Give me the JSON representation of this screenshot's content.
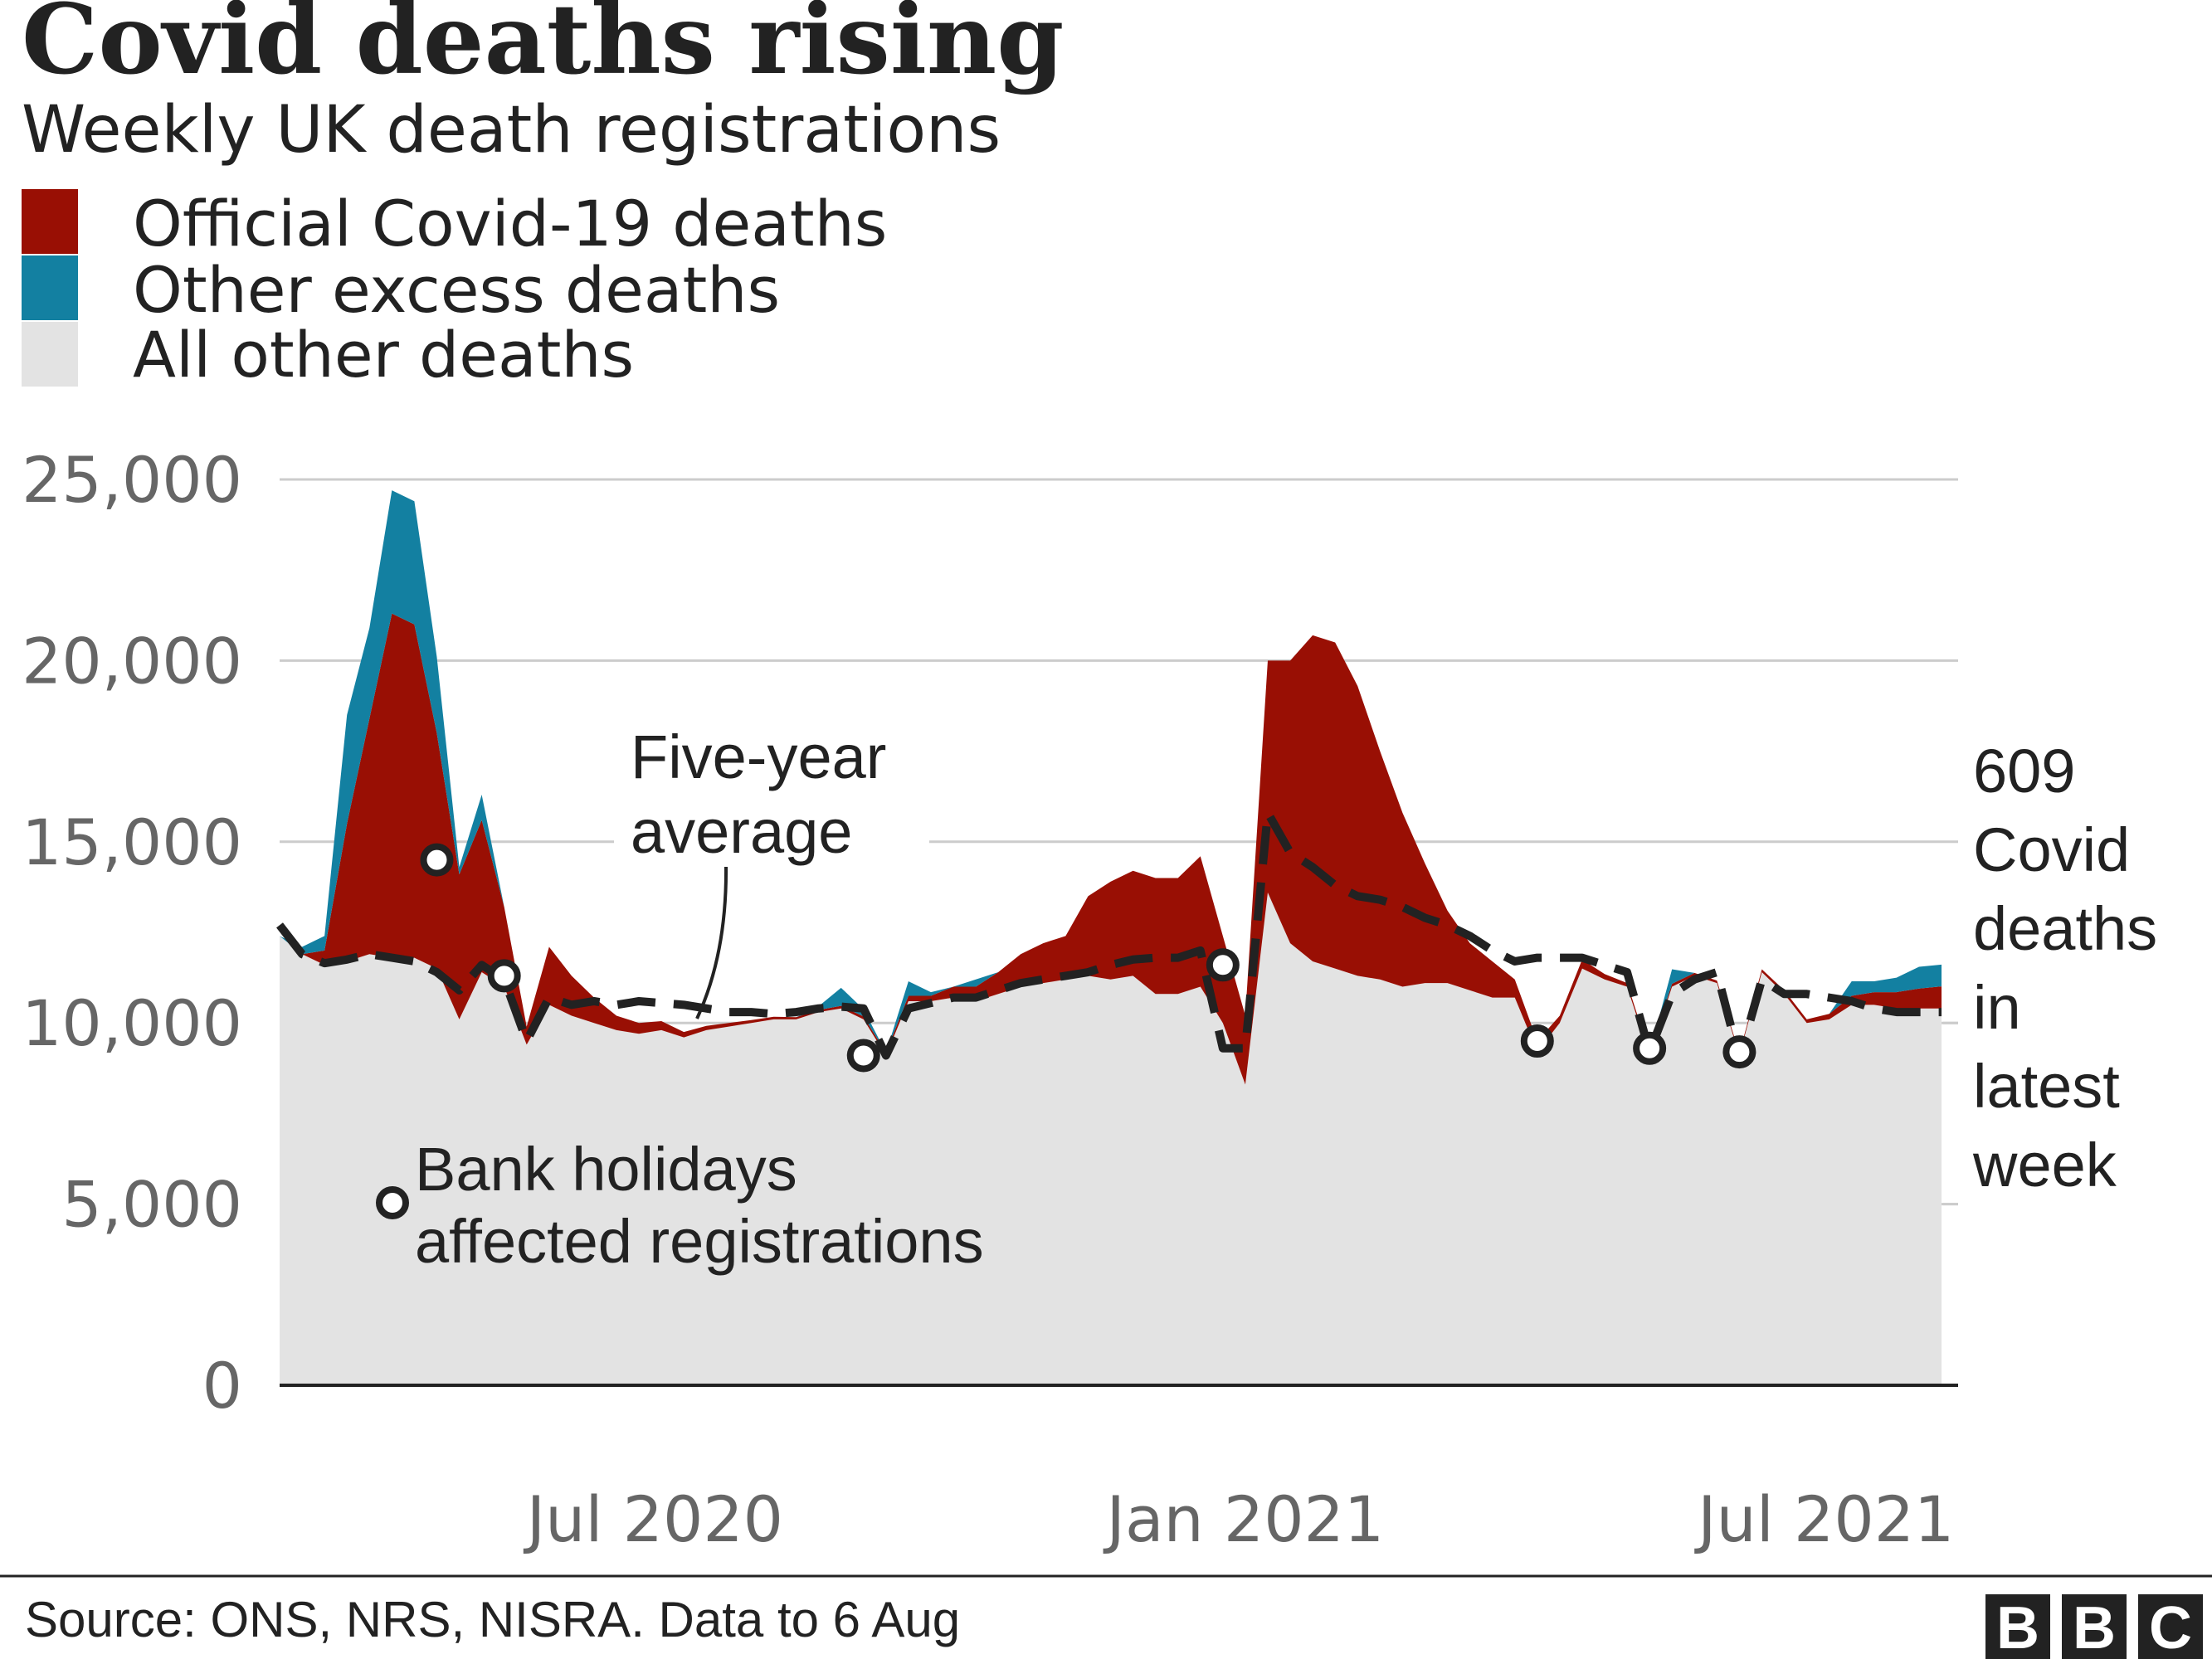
{
  "colors": {
    "covid": "#990f04",
    "excess": "#1380a1",
    "other": "#e3e3e3",
    "average": "#222222",
    "grid": "#cccccc",
    "tick": "#666666"
  },
  "chart_data": {
    "type": "area",
    "title": "Covid deaths rising",
    "subtitle": "Weekly UK death registrations",
    "ylim": [
      0,
      25000
    ],
    "yticks": [
      0,
      5000,
      10000,
      15000,
      20000,
      25000
    ],
    "ytick_labels": [
      "0",
      "5,000",
      "10,000",
      "15,000",
      "20,000",
      "25,000"
    ],
    "xlim": [
      "2020-03-06",
      "2021-08-06"
    ],
    "xticks": [
      {
        "date": "2020-07-01",
        "label": "Jul 2020"
      },
      {
        "date": "2021-01-01",
        "label": "Jan 2021"
      },
      {
        "date": "2021-07-01",
        "label": "Jul 2021"
      }
    ],
    "grid": true,
    "legend": {
      "position": "top-left",
      "entries": [
        {
          "key": "covid",
          "label": "Official Covid-19 deaths"
        },
        {
          "key": "excess",
          "label": "Other excess deaths"
        },
        {
          "key": "other",
          "label": "All other deaths"
        }
      ]
    },
    "weeks": [
      {
        "date": "2020-03-06",
        "other": 12400,
        "covid": 0,
        "excess": 0,
        "average": 12700
      },
      {
        "date": "2020-03-13",
        "other": 11900,
        "covid": 0,
        "excess": 200,
        "average": 11900
      },
      {
        "date": "2020-03-20",
        "other": 11600,
        "covid": 400,
        "excess": 400,
        "average": 11650
      },
      {
        "date": "2020-03-27",
        "other": 11700,
        "covid": 3800,
        "excess": 3000,
        "average": 11750
      },
      {
        "date": "2020-04-03",
        "other": 11900,
        "covid": 6500,
        "excess": 2500,
        "average": 11900
      },
      {
        "date": "2020-04-10",
        "other": 11800,
        "covid": 9500,
        "excess": 3400,
        "average": 11800
      },
      {
        "date": "2020-04-17",
        "other": 11800,
        "covid": 9200,
        "excess": 3400,
        "average": 11700
      },
      {
        "date": "2020-04-24",
        "other": 11500,
        "covid": 6500,
        "excess": 2100,
        "average": 11400
      },
      {
        "date": "2020-05-01",
        "other": 10100,
        "covid": 4000,
        "excess": 200,
        "average": 10900
      },
      {
        "date": "2020-05-08",
        "other": 11400,
        "covid": 4200,
        "excess": 700,
        "average": 11600
      },
      {
        "date": "2020-05-15",
        "other": 11000,
        "covid": 2200,
        "excess": 0,
        "average": 11200
      },
      {
        "date": "2020-05-22",
        "other": 9400,
        "covid": 500,
        "excess": 0,
        "average": 9500
      },
      {
        "date": "2020-05-29",
        "other": 10500,
        "covid": 1600,
        "excess": 0,
        "average": 10700
      },
      {
        "date": "2020-06-05",
        "other": 10200,
        "covid": 1100,
        "excess": 0,
        "average": 10500
      },
      {
        "date": "2020-06-12",
        "other": 10000,
        "covid": 700,
        "excess": 0,
        "average": 10600
      },
      {
        "date": "2020-06-19",
        "other": 9800,
        "covid": 400,
        "excess": 0,
        "average": 10500
      },
      {
        "date": "2020-06-26",
        "other": 9700,
        "covid": 300,
        "excess": 0,
        "average": 10600
      },
      {
        "date": "2020-07-03",
        "other": 9800,
        "covid": 250,
        "excess": 0,
        "average": 10550
      },
      {
        "date": "2020-07-10",
        "other": 9600,
        "covid": 150,
        "excess": 0,
        "average": 10500
      },
      {
        "date": "2020-07-17",
        "other": 9800,
        "covid": 120,
        "excess": 0,
        "average": 10400
      },
      {
        "date": "2020-07-24",
        "other": 9900,
        "covid": 100,
        "excess": 0,
        "average": 10300
      },
      {
        "date": "2020-07-31",
        "other": 10000,
        "covid": 80,
        "excess": 0,
        "average": 10300
      },
      {
        "date": "2020-08-07",
        "other": 10100,
        "covid": 70,
        "excess": 0,
        "average": 10250
      },
      {
        "date": "2020-08-14",
        "other": 10100,
        "covid": 60,
        "excess": 0,
        "average": 10300
      },
      {
        "date": "2020-08-21",
        "other": 10300,
        "covid": 60,
        "excess": 100,
        "average": 10400
      },
      {
        "date": "2020-08-28",
        "other": 10400,
        "covid": 70,
        "excess": 500,
        "average": 10450
      },
      {
        "date": "2020-09-04",
        "other": 10100,
        "covid": 80,
        "excess": 200,
        "average": 10400
      },
      {
        "date": "2020-09-11",
        "other": 9100,
        "covid": 80,
        "excess": 0,
        "average": 9100
      },
      {
        "date": "2020-09-18",
        "other": 10600,
        "covid": 150,
        "excess": 400,
        "average": 10400
      },
      {
        "date": "2020-09-25",
        "other": 10600,
        "covid": 150,
        "excess": 100,
        "average": 10550
      },
      {
        "date": "2020-10-02",
        "other": 10700,
        "covid": 300,
        "excess": 0,
        "average": 10700
      },
      {
        "date": "2020-10-09",
        "other": 10600,
        "covid": 400,
        "excess": 200,
        "average": 10700
      },
      {
        "date": "2020-10-16",
        "other": 10800,
        "covid": 600,
        "excess": 0,
        "average": 10900
      },
      {
        "date": "2020-10-23",
        "other": 11000,
        "covid": 900,
        "excess": 0,
        "average": 11100
      },
      {
        "date": "2020-10-30",
        "other": 11100,
        "covid": 1100,
        "excess": 0,
        "average": 11200
      },
      {
        "date": "2020-11-06",
        "other": 11200,
        "covid": 1200,
        "excess": 0,
        "average": 11300
      },
      {
        "date": "2020-11-13",
        "other": 11300,
        "covid": 2200,
        "excess": 0,
        "average": 11400
      },
      {
        "date": "2020-11-20",
        "other": 11200,
        "covid": 2700,
        "excess": 0,
        "average": 11600
      },
      {
        "date": "2020-11-27",
        "other": 11300,
        "covid": 2900,
        "excess": 0,
        "average": 11750
      },
      {
        "date": "2020-12-04",
        "other": 10800,
        "covid": 3200,
        "excess": 0,
        "average": 11800
      },
      {
        "date": "2020-12-11",
        "other": 10800,
        "covid": 3200,
        "excess": 0,
        "average": 11800
      },
      {
        "date": "2020-12-18",
        "other": 11000,
        "covid": 3600,
        "excess": 0,
        "average": 12000
      },
      {
        "date": "2020-12-25",
        "other": 10000,
        "covid": 2400,
        "excess": 0,
        "average": 9300
      },
      {
        "date": "2021-01-01",
        "other": 8300,
        "covid": 1900,
        "excess": 0,
        "average": 9300
      },
      {
        "date": "2021-01-08",
        "other": 13600,
        "covid": 6400,
        "excess": 0,
        "average": 15800
      },
      {
        "date": "2021-01-15",
        "other": 12200,
        "covid": 7800,
        "excess": 0,
        "average": 14700
      },
      {
        "date": "2021-01-22",
        "other": 11700,
        "covid": 9000,
        "excess": 0,
        "average": 14300
      },
      {
        "date": "2021-01-29",
        "other": 11500,
        "covid": 9000,
        "excess": 0,
        "average": 13800
      },
      {
        "date": "2021-02-05",
        "other": 11300,
        "covid": 8000,
        "excess": 0,
        "average": 13500
      },
      {
        "date": "2021-02-12",
        "other": 11200,
        "covid": 6300,
        "excess": 0,
        "average": 13400
      },
      {
        "date": "2021-02-19",
        "other": 11000,
        "covid": 4800,
        "excess": 0,
        "average": 13200
      },
      {
        "date": "2021-02-26",
        "other": 11100,
        "covid": 3300,
        "excess": 0,
        "average": 12900
      },
      {
        "date": "2021-03-05",
        "other": 11100,
        "covid": 2000,
        "excess": 0,
        "average": 12700
      },
      {
        "date": "2021-03-12",
        "other": 10900,
        "covid": 1300,
        "excess": 0,
        "average": 12400
      },
      {
        "date": "2021-03-19",
        "other": 10700,
        "covid": 1000,
        "excess": 0,
        "average": 12000
      },
      {
        "date": "2021-03-26",
        "other": 10700,
        "covid": 500,
        "excess": 0,
        "average": 11700
      },
      {
        "date": "2021-04-02",
        "other": 9200,
        "covid": 300,
        "excess": 0,
        "average": 11800
      },
      {
        "date": "2021-04-09",
        "other": 10000,
        "covid": 200,
        "excess": 0,
        "average": 11800
      },
      {
        "date": "2021-04-16",
        "other": 11500,
        "covid": 250,
        "excess": 0,
        "average": 11800
      },
      {
        "date": "2021-04-23",
        "other": 11200,
        "covid": 150,
        "excess": 0,
        "average": 11600
      },
      {
        "date": "2021-04-30",
        "other": 11000,
        "covid": 100,
        "excess": 0,
        "average": 11400
      },
      {
        "date": "2021-05-07",
        "other": 9100,
        "covid": 80,
        "excess": 0,
        "average": 9200
      },
      {
        "date": "2021-05-14",
        "other": 11000,
        "covid": 80,
        "excess": 400,
        "average": 10800
      },
      {
        "date": "2021-05-21",
        "other": 11300,
        "covid": 80,
        "excess": 0,
        "average": 11200
      },
      {
        "date": "2021-05-28",
        "other": 11100,
        "covid": 70,
        "excess": 0,
        "average": 11400
      },
      {
        "date": "2021-06-04",
        "other": 9100,
        "covid": 60,
        "excess": 0,
        "average": 9000
      },
      {
        "date": "2021-06-11",
        "other": 11400,
        "covid": 80,
        "excess": 0,
        "average": 11200
      },
      {
        "date": "2021-06-18",
        "other": 10800,
        "covid": 100,
        "excess": 0,
        "average": 10800
      },
      {
        "date": "2021-06-25",
        "other": 10000,
        "covid": 100,
        "excess": 0,
        "average": 10800
      },
      {
        "date": "2021-07-02",
        "other": 10100,
        "covid": 150,
        "excess": 0,
        "average": 10700
      },
      {
        "date": "2021-07-09",
        "other": 10500,
        "covid": 250,
        "excess": 400,
        "average": 10600
      },
      {
        "date": "2021-07-16",
        "other": 10500,
        "covid": 350,
        "excess": 300,
        "average": 10400
      },
      {
        "date": "2021-07-23",
        "other": 10400,
        "covid": 450,
        "excess": 400,
        "average": 10300
      },
      {
        "date": "2021-07-30",
        "other": 10400,
        "covid": 550,
        "excess": 600,
        "average": 10300
      },
      {
        "date": "2021-08-06",
        "other": 10400,
        "covid": 609,
        "excess": 600,
        "average": 10300
      }
    ],
    "bank_holidays": [
      {
        "date": "2020-04-24",
        "value": 14500
      },
      {
        "date": "2020-05-15",
        "value": 11300
      },
      {
        "date": "2020-09-04",
        "value": 9100
      },
      {
        "date": "2020-12-25",
        "value": 11600
      },
      {
        "date": "2021-04-02",
        "value": 9500
      },
      {
        "date": "2021-05-07",
        "value": 9300
      },
      {
        "date": "2021-06-04",
        "value": 9200
      }
    ],
    "annotations": {
      "average_label_line1": "Five-year",
      "average_label_line2": "average",
      "bank_label_line1": "Bank holidays",
      "bank_label_line2": "affected registrations",
      "latest_lines": [
        "609",
        "Covid",
        "deaths",
        "in",
        "latest",
        "week"
      ]
    }
  },
  "footer": {
    "source": "Source: ONS, NRS, NISRA. Data to 6 Aug",
    "logo_letters": [
      "B",
      "B",
      "C"
    ]
  }
}
